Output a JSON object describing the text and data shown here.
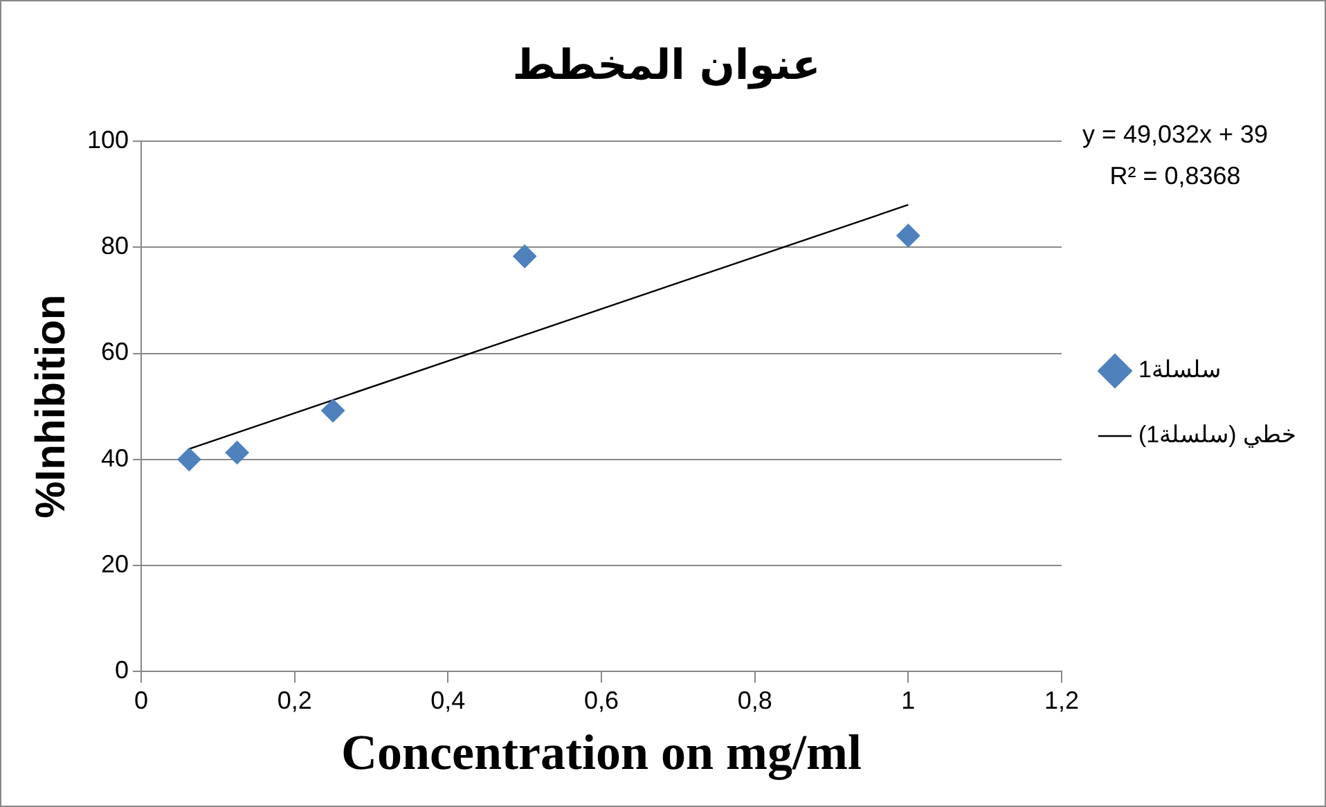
{
  "chart_data": {
    "type": "scatter",
    "title": "عنوان المخطط",
    "xlabel": "Concentration on mg/ml",
    "ylabel": "%Inhibition",
    "x": [
      0.0625,
      0.125,
      0.25,
      0.5,
      1
    ],
    "series": [
      {
        "name": "سلسلة1",
        "color": "#4f81bd",
        "marker": "diamond",
        "values": [
          40,
          41.3,
          49.2,
          78.3,
          82.2
        ]
      },
      {
        "name": "خطي (سلسلة1)",
        "type": "line",
        "color": "#000000",
        "marker": "none",
        "x": [
          0.0625,
          1
        ],
        "values": [
          42,
          88
        ]
      }
    ],
    "xlim": [
      0,
      1.2
    ],
    "xticks": [
      0,
      {
        "value": 0.2,
        "label": "0,2"
      },
      {
        "value": 0.4,
        "label": "0,4"
      },
      {
        "value": 0.6,
        "label": "0,6"
      },
      {
        "value": 0.8,
        "label": "0,8"
      },
      1,
      {
        "value": 1.2,
        "label": "1,2"
      }
    ],
    "ylim": [
      0,
      100
    ],
    "yticks": [
      0,
      20,
      40,
      60,
      80,
      100
    ],
    "grid": "y",
    "legend": "right",
    "annotations": [
      "y = 49,032x + 39",
      "R² = 0,8368"
    ]
  }
}
